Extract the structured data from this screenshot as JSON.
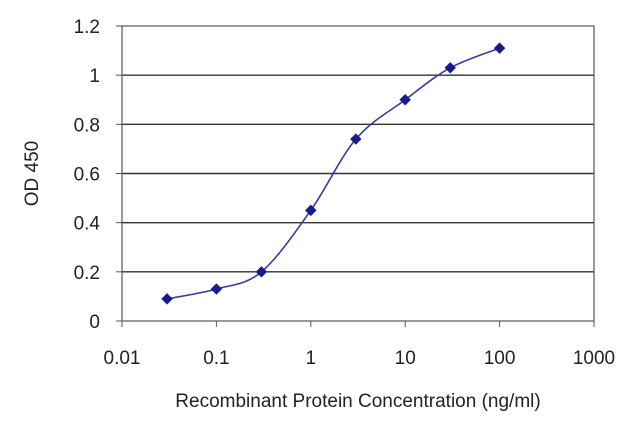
{
  "chart_data": {
    "type": "line",
    "xlabel": "Recombinant Protein Concentration (ng/ml)",
    "ylabel": "OD 450",
    "x_scale": "log",
    "xlim": [
      0.01,
      1000
    ],
    "ylim": [
      0,
      1.2
    ],
    "x_ticks": [
      0.01,
      0.1,
      1,
      10,
      100,
      1000
    ],
    "x_tick_labels": [
      "0.01",
      "0.1",
      "1",
      "10",
      "100",
      "1000"
    ],
    "y_ticks": [
      0,
      0.2,
      0.4,
      0.6,
      0.8,
      1,
      1.2
    ],
    "y_tick_labels": [
      "0",
      "0.2",
      "0.4",
      "0.6",
      "0.8",
      "1",
      "1.2"
    ],
    "grid": "horizontal",
    "legend": "none",
    "series": [
      {
        "x": [
          0.03,
          0.1,
          0.3,
          1,
          3,
          10,
          30,
          100
        ],
        "y": [
          0.09,
          0.13,
          0.2,
          0.45,
          0.74,
          0.9,
          1.03,
          1.11
        ],
        "color": "#3a3aa0",
        "marker": "diamond",
        "marker_color": "#1a1a8c"
      }
    ]
  }
}
